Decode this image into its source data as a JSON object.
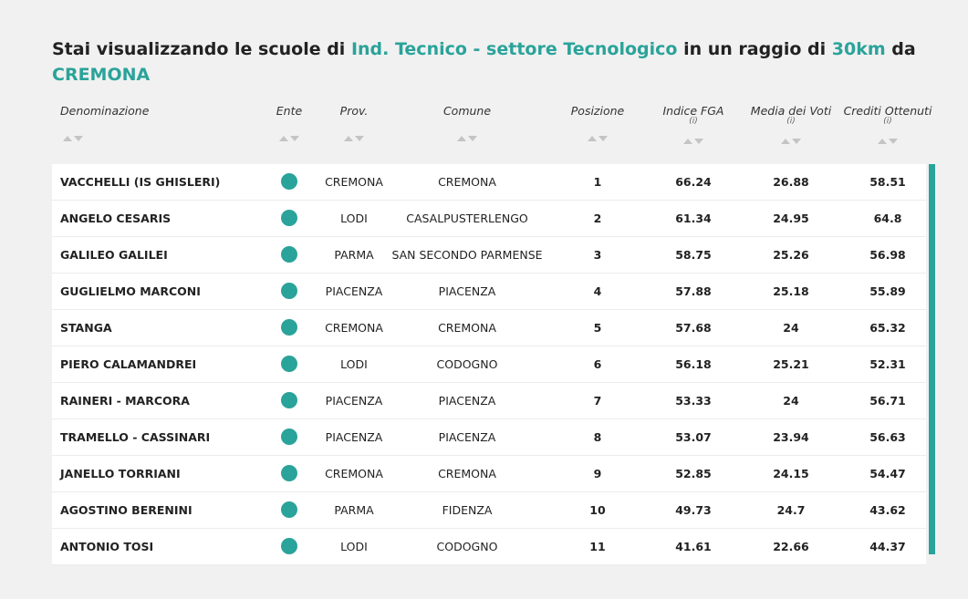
{
  "heading": {
    "parts": [
      "Stai visualizzando le scuole di",
      "Ind. Tecnico - settore Tecnologico",
      "in un raggio di",
      "30km",
      "da",
      "CREMONA"
    ]
  },
  "table": {
    "columns": [
      {
        "label": "Denominazione"
      },
      {
        "label": "Ente"
      },
      {
        "label": "Prov."
      },
      {
        "label": "Comune"
      },
      {
        "label": "Posizione"
      },
      {
        "label": "Indice FGA",
        "info": "(i)"
      },
      {
        "label": "Media dei Voti",
        "info": "(i)"
      },
      {
        "label": "Crediti Ottenuti",
        "info": "(i)"
      }
    ],
    "rows": [
      [
        "VACCHELLI (IS GHISLERI)",
        "CREMONA",
        "CREMONA",
        1,
        66.24,
        26.88,
        58.51
      ],
      [
        "ANGELO CESARIS",
        "LODI",
        "CASALPUSTERLENGO",
        2,
        61.34,
        24.95,
        64.8
      ],
      [
        "GALILEO GALILEI",
        "PARMA",
        "SAN SECONDO PARMENSE",
        3,
        58.75,
        25.26,
        56.98
      ],
      [
        "GUGLIELMO MARCONI",
        "PIACENZA",
        "PIACENZA",
        4,
        57.88,
        25.18,
        55.89
      ],
      [
        "STANGA",
        "CREMONA",
        "CREMONA",
        5,
        57.68,
        24,
        65.32
      ],
      [
        "PIERO CALAMANDREI",
        "LODI",
        "CODOGNO",
        6,
        56.18,
        25.21,
        52.31
      ],
      [
        "RAINERI - MARCORA",
        "PIACENZA",
        "PIACENZA",
        7,
        53.33,
        24,
        56.71
      ],
      [
        "TRAMELLO - CASSINARI",
        "PIACENZA",
        "PIACENZA",
        8,
        53.07,
        23.94,
        56.63
      ],
      [
        "JANELLO TORRIANI",
        "CREMONA",
        "CREMONA",
        9,
        52.85,
        24.15,
        54.47
      ],
      [
        "AGOSTINO BERENINI",
        "PARMA",
        "FIDENZA",
        10,
        49.73,
        24.7,
        43.62
      ],
      [
        "ANTONIO TOSI",
        "LODI",
        "CODOGNO",
        11,
        41.61,
        22.66,
        44.37
      ]
    ]
  }
}
